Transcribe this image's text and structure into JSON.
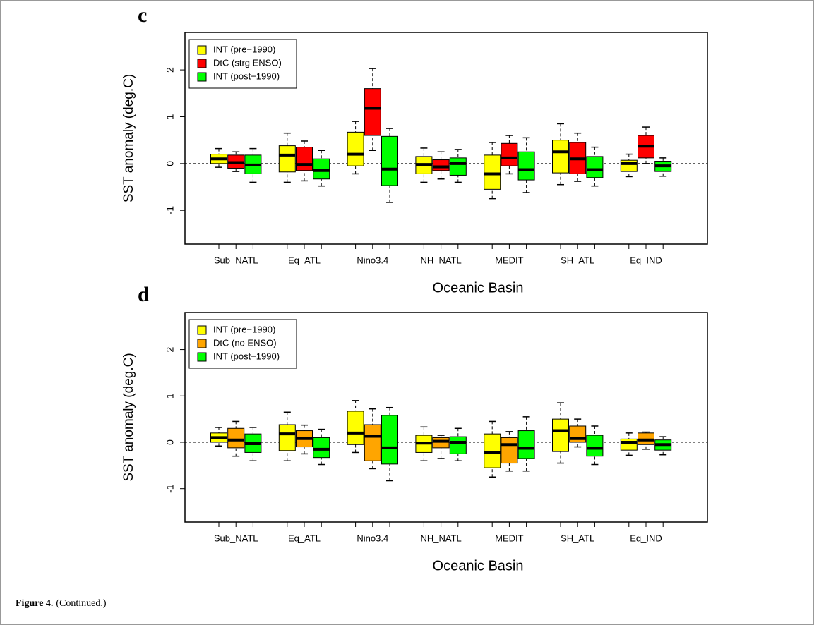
{
  "caption": {
    "label": "Figure 4.",
    "text": "(Continued.)"
  },
  "chart_data": [
    {
      "type": "box",
      "panel": "c",
      "xlabel": "Oceanic Basin",
      "ylabel": "SST anomaly (deg.C)",
      "categories": [
        "Sub_NATL",
        "Eq_ATL",
        "Nino3.4",
        "NH_NATL",
        "MEDIT",
        "SH_ATL",
        "Eq_IND"
      ],
      "ylim": [
        -1.72,
        2.8
      ],
      "yticks": [
        -1,
        0,
        1,
        2
      ],
      "hline": 0,
      "legend": "top-left",
      "series": [
        {
          "name": "INT (pre−1990)",
          "color": "#ffff00",
          "values": [
            {
              "low": -0.08,
              "q1": 0.0,
              "median": 0.1,
              "q3": 0.2,
              "high": 0.32
            },
            {
              "low": -0.4,
              "q1": -0.18,
              "median": 0.18,
              "q3": 0.38,
              "high": 0.65
            },
            {
              "low": -0.22,
              "q1": -0.05,
              "median": 0.2,
              "q3": 0.67,
              "high": 0.9
            },
            {
              "low": -0.4,
              "q1": -0.22,
              "median": -0.02,
              "q3": 0.15,
              "high": 0.33
            },
            {
              "low": -0.75,
              "q1": -0.55,
              "median": -0.22,
              "q3": 0.18,
              "high": 0.45
            },
            {
              "low": -0.45,
              "q1": -0.2,
              "median": 0.25,
              "q3": 0.5,
              "high": 0.85
            },
            {
              "low": -0.28,
              "q1": -0.17,
              "median": 0.0,
              "q3": 0.07,
              "high": 0.2
            }
          ]
        },
        {
          "name": "DtC (strg ENSO)",
          "color": "#ff0000",
          "values": [
            {
              "low": -0.17,
              "q1": -0.1,
              "median": 0.02,
              "q3": 0.18,
              "high": 0.25
            },
            {
              "low": -0.37,
              "q1": -0.15,
              "median": -0.02,
              "q3": 0.35,
              "high": 0.48
            },
            {
              "low": 0.28,
              "q1": 0.6,
              "median": 1.18,
              "q3": 1.6,
              "high": 2.03
            },
            {
              "low": -0.33,
              "q1": -0.15,
              "median": -0.07,
              "q3": 0.08,
              "high": 0.25
            },
            {
              "low": -0.22,
              "q1": -0.05,
              "median": 0.12,
              "q3": 0.43,
              "high": 0.6
            },
            {
              "low": -0.38,
              "q1": -0.22,
              "median": 0.1,
              "q3": 0.45,
              "high": 0.65
            },
            {
              "low": 0.0,
              "q1": 0.12,
              "median": 0.37,
              "q3": 0.6,
              "high": 0.78
            }
          ]
        },
        {
          "name": "INT (post−1990)",
          "color": "#00ff00",
          "values": [
            {
              "low": -0.4,
              "q1": -0.22,
              "median": -0.03,
              "q3": 0.18,
              "high": 0.32
            },
            {
              "low": -0.48,
              "q1": -0.33,
              "median": -0.15,
              "q3": 0.1,
              "high": 0.28
            },
            {
              "low": -0.83,
              "q1": -0.47,
              "median": -0.12,
              "q3": 0.58,
              "high": 0.75
            },
            {
              "low": -0.4,
              "q1": -0.25,
              "median": 0.0,
              "q3": 0.12,
              "high": 0.3
            },
            {
              "low": -0.62,
              "q1": -0.35,
              "median": -0.13,
              "q3": 0.25,
              "high": 0.55
            },
            {
              "low": -0.48,
              "q1": -0.3,
              "median": -0.13,
              "q3": 0.15,
              "high": 0.35
            },
            {
              "low": -0.27,
              "q1": -0.17,
              "median": -0.05,
              "q3": 0.05,
              "high": 0.12
            }
          ]
        }
      ]
    },
    {
      "type": "box",
      "panel": "d",
      "xlabel": "Oceanic Basin",
      "ylabel": "SST anomaly (deg.C)",
      "categories": [
        "Sub_NATL",
        "Eq_ATL",
        "Nino3.4",
        "NH_NATL",
        "MEDIT",
        "SH_ATL",
        "Eq_IND"
      ],
      "ylim": [
        -1.72,
        2.8
      ],
      "yticks": [
        -1,
        0,
        1,
        2
      ],
      "hline": 0,
      "legend": "top-left",
      "series": [
        {
          "name": "INT (pre−1990)",
          "color": "#ffff00",
          "values": [
            {
              "low": -0.08,
              "q1": 0.0,
              "median": 0.1,
              "q3": 0.2,
              "high": 0.32
            },
            {
              "low": -0.4,
              "q1": -0.18,
              "median": 0.18,
              "q3": 0.38,
              "high": 0.65
            },
            {
              "low": -0.22,
              "q1": -0.05,
              "median": 0.2,
              "q3": 0.67,
              "high": 0.9
            },
            {
              "low": -0.4,
              "q1": -0.22,
              "median": -0.02,
              "q3": 0.15,
              "high": 0.33
            },
            {
              "low": -0.75,
              "q1": -0.55,
              "median": -0.22,
              "q3": 0.18,
              "high": 0.45
            },
            {
              "low": -0.45,
              "q1": -0.2,
              "median": 0.25,
              "q3": 0.5,
              "high": 0.85
            },
            {
              "low": -0.28,
              "q1": -0.17,
              "median": 0.0,
              "q3": 0.07,
              "high": 0.2
            }
          ]
        },
        {
          "name": "DtC (no ENSO)",
          "color": "#ffa500",
          "values": [
            {
              "low": -0.3,
              "q1": -0.12,
              "median": 0.05,
              "q3": 0.3,
              "high": 0.45
            },
            {
              "low": -0.25,
              "q1": -0.1,
              "median": 0.08,
              "q3": 0.25,
              "high": 0.37
            },
            {
              "low": -0.57,
              "q1": -0.4,
              "median": 0.13,
              "q3": 0.38,
              "high": 0.72
            },
            {
              "low": -0.35,
              "q1": -0.12,
              "median": 0.02,
              "q3": 0.1,
              "high": 0.15
            },
            {
              "low": -0.62,
              "q1": -0.45,
              "median": -0.05,
              "q3": 0.1,
              "high": 0.23
            },
            {
              "low": -0.1,
              "q1": 0.0,
              "median": 0.08,
              "q3": 0.35,
              "high": 0.5
            },
            {
              "low": -0.15,
              "q1": -0.05,
              "median": 0.05,
              "q3": 0.2,
              "high": 0.22
            }
          ]
        },
        {
          "name": "INT (post−1990)",
          "color": "#00ff00",
          "values": [
            {
              "low": -0.4,
              "q1": -0.22,
              "median": -0.03,
              "q3": 0.18,
              "high": 0.32
            },
            {
              "low": -0.48,
              "q1": -0.33,
              "median": -0.15,
              "q3": 0.1,
              "high": 0.28
            },
            {
              "low": -0.83,
              "q1": -0.47,
              "median": -0.12,
              "q3": 0.58,
              "high": 0.75
            },
            {
              "low": -0.4,
              "q1": -0.25,
              "median": 0.0,
              "q3": 0.12,
              "high": 0.3
            },
            {
              "low": -0.62,
              "q1": -0.35,
              "median": -0.13,
              "q3": 0.25,
              "high": 0.55
            },
            {
              "low": -0.48,
              "q1": -0.3,
              "median": -0.13,
              "q3": 0.15,
              "high": 0.35
            },
            {
              "low": -0.27,
              "q1": -0.17,
              "median": -0.05,
              "q3": 0.05,
              "high": 0.12
            }
          ]
        }
      ]
    }
  ]
}
